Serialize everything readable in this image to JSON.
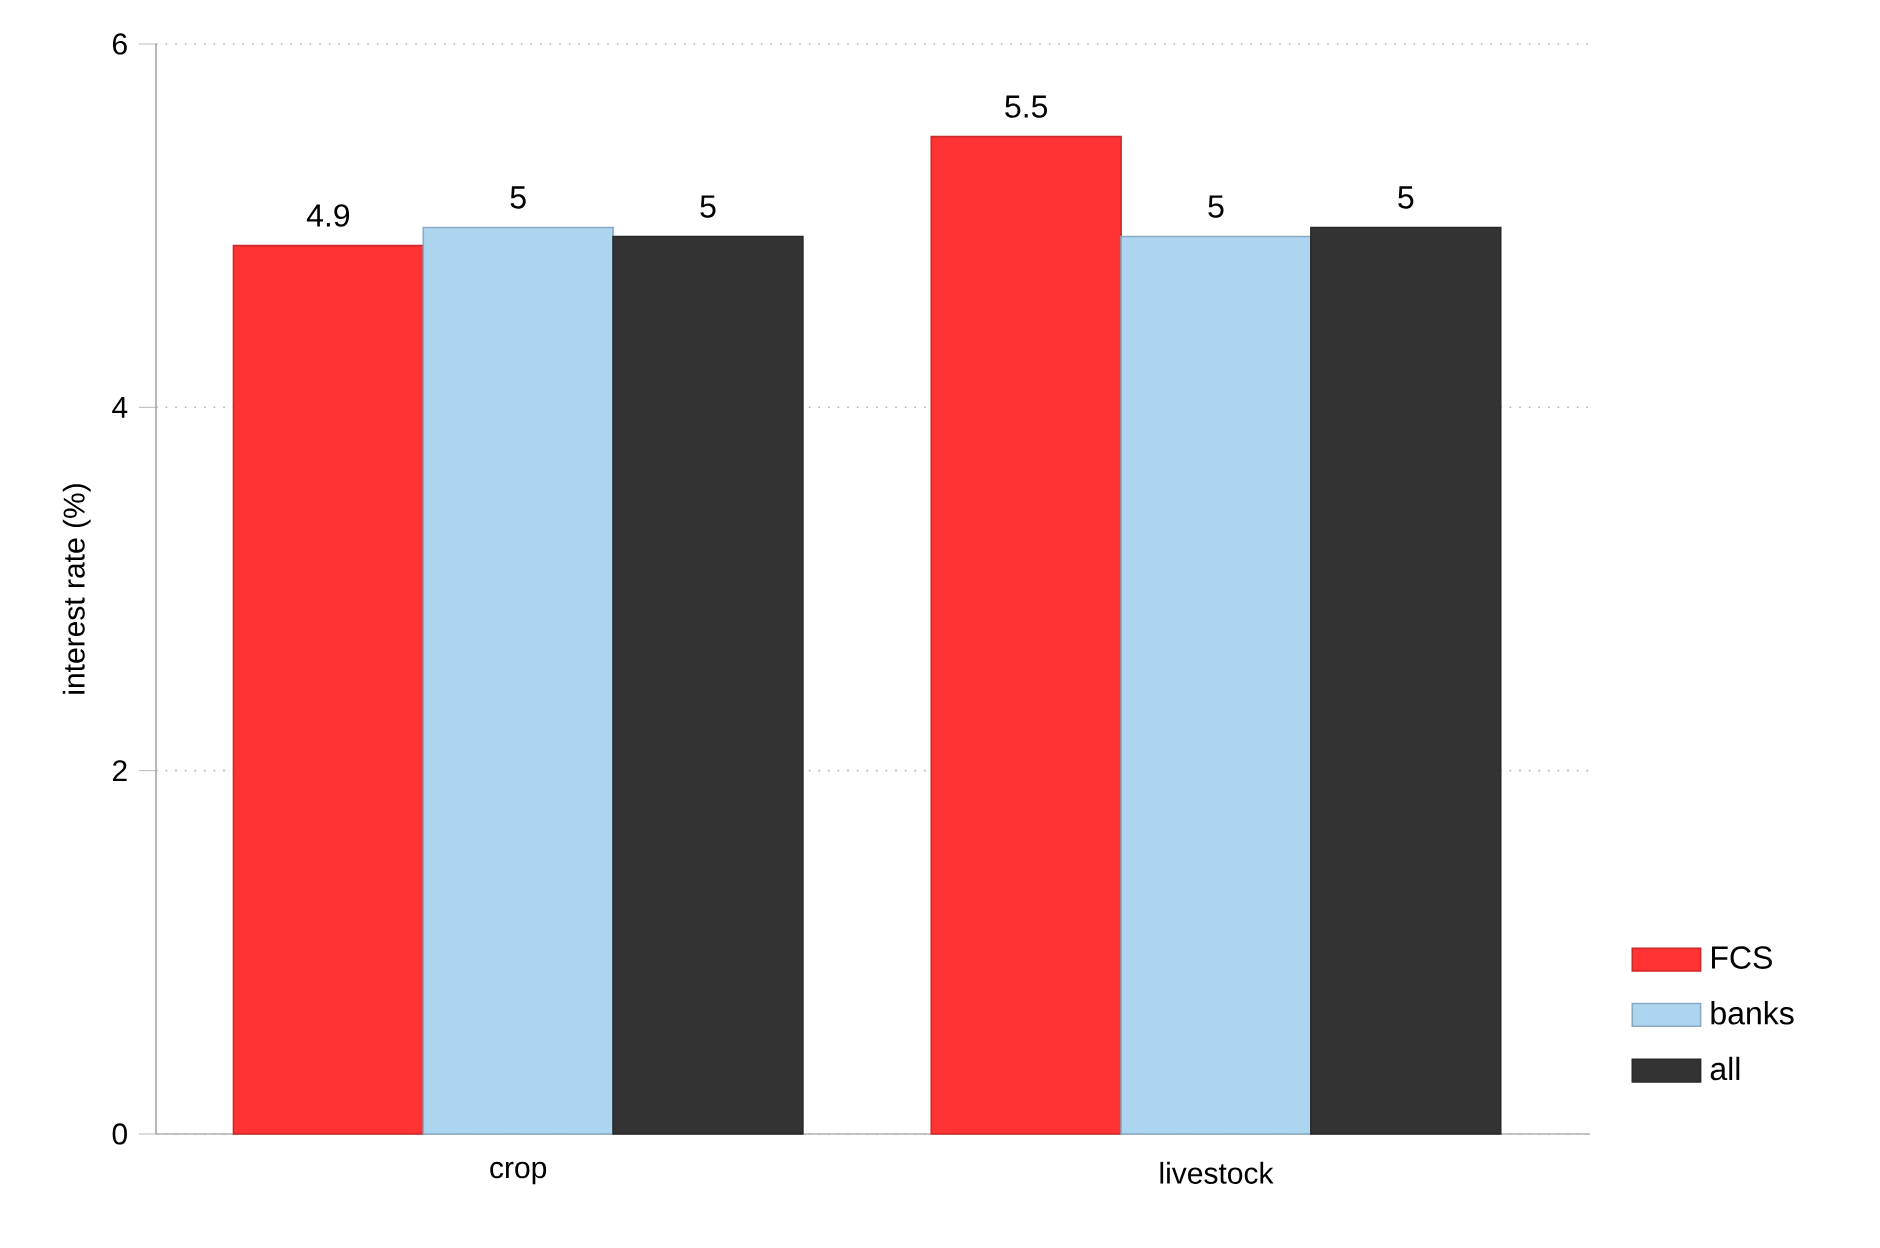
{
  "chart_data": {
    "type": "bar",
    "ylabel": "interest rate (%)",
    "categories": [
      "crop",
      "livestock"
    ],
    "series": [
      {
        "name": "FCS",
        "color": "#ff3333",
        "values": [
          4.89,
          5.49
        ],
        "value_labels": [
          "4.9",
          "5.5"
        ]
      },
      {
        "name": "banks",
        "color": "#acd5f0",
        "values": [
          4.99,
          4.94
        ],
        "value_labels": [
          "5",
          "5"
        ]
      },
      {
        "name": "all",
        "color": "#333333",
        "values": [
          4.94,
          4.99
        ],
        "value_labels": [
          "5",
          "5"
        ]
      }
    ],
    "ylim": [
      0,
      6
    ],
    "yticks": [
      0,
      2,
      4,
      6
    ],
    "grid": "y",
    "legend": "bottom right"
  }
}
